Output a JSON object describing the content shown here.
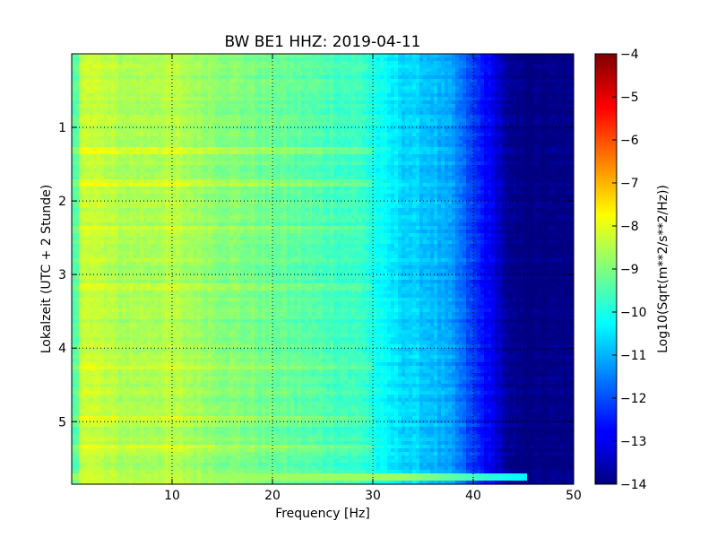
{
  "chart_data": {
    "type": "heatmap",
    "title": "BW BE1 HHZ: 2019-04-11",
    "xlabel": "Frequency [Hz]",
    "ylabel": "Lokalzeit (UTC + 2 Stunde)",
    "xlim": [
      0,
      50
    ],
    "ylim": [
      5.85,
      0
    ],
    "x_ticks": [
      10,
      20,
      30,
      40,
      50
    ],
    "y_ticks": [
      1,
      2,
      3,
      4,
      5
    ],
    "grid": true,
    "colormap": "jet",
    "colorbar": {
      "label": "Log10(Sqrt(m**2/s**2/Hz))",
      "range": [
        -14,
        -4
      ],
      "ticks": [
        -4,
        -5,
        -6,
        -7,
        -8,
        -9,
        -10,
        -11,
        -12,
        -13,
        -14
      ]
    },
    "frequency_profile": {
      "x": [
        0.5,
        1,
        2,
        5,
        10,
        15,
        20,
        25,
        29,
        31,
        33,
        36,
        38,
        39.5,
        41,
        42.5,
        43.5,
        45,
        50
      ],
      "values": [
        -9.5,
        -8.1,
        -8.3,
        -8.6,
        -8.5,
        -8.9,
        -9.2,
        -9.5,
        -9.7,
        -10.3,
        -10.6,
        -10.9,
        -11.3,
        -12.0,
        -12.6,
        -13.2,
        -13.9,
        -14.0,
        -14.0
      ]
    },
    "annotations": {
      "bright_bands_hours": [
        1.3,
        1.75,
        2.4,
        3.15,
        4.25,
        4.95,
        5.35
      ],
      "event_band": {
        "hours": [
          5.68,
          5.78
        ],
        "value": -8.7
      }
    }
  }
}
